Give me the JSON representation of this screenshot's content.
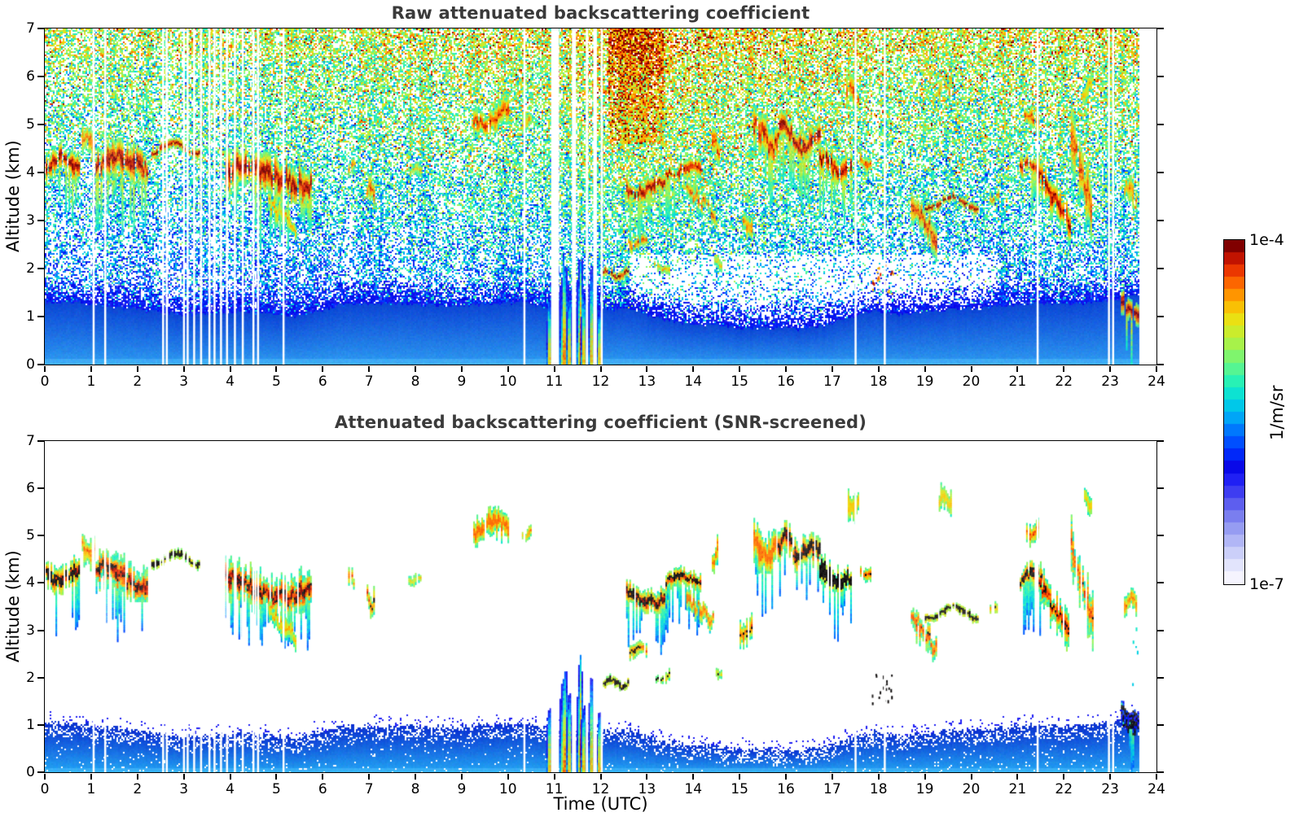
{
  "figure": {
    "background": "#ffffff",
    "title_color": "#3a3a3a"
  },
  "chart_data": {
    "type": "heatmap",
    "description": "Two lidar time-height curtain plots of attenuated backscattering coefficient over 24 hours",
    "xlabel": "Time (UTC)",
    "x_range": [
      0,
      24
    ],
    "y_range": [
      0,
      7
    ],
    "x_ticks": [
      0,
      1,
      2,
      3,
      4,
      5,
      6,
      7,
      8,
      9,
      10,
      11,
      12,
      13,
      14,
      15,
      16,
      17,
      18,
      19,
      20,
      21,
      22,
      23,
      24
    ],
    "y_ticks": [
      0,
      1,
      2,
      3,
      4,
      5,
      6,
      7
    ],
    "data_end_time": 23.63,
    "value_unit": "1/m/sr",
    "panels": [
      {
        "title": "Raw attenuated backscattering coefficient",
        "ylabel": "Altitude (km)",
        "screened": false
      },
      {
        "title": "Attenuated backscattering coefficient (SNR-screened)",
        "ylabel": "Altitude (km)",
        "screened": true
      }
    ],
    "colorbar": {
      "top_label": "1e-4",
      "bottom_label": "1e-7",
      "unit_label": "1/m/sr",
      "min": 1e-07,
      "max": 0.0001,
      "scale": "log",
      "steps": 28,
      "stops": [
        [
          0.0,
          "#f5f4fe"
        ],
        [
          0.05,
          "#dcdefb"
        ],
        [
          0.1,
          "#b9bef7"
        ],
        [
          0.15,
          "#959bf2"
        ],
        [
          0.2,
          "#6f72ee"
        ],
        [
          0.25,
          "#4644f0"
        ],
        [
          0.3,
          "#1d1df4"
        ],
        [
          0.34,
          "#0505e6"
        ],
        [
          0.38,
          "#0033ff"
        ],
        [
          0.43,
          "#0066ff"
        ],
        [
          0.48,
          "#00a4f8"
        ],
        [
          0.53,
          "#00d3e4"
        ],
        [
          0.58,
          "#19f0c0"
        ],
        [
          0.63,
          "#55f593"
        ],
        [
          0.68,
          "#8ef55f"
        ],
        [
          0.73,
          "#c2ef33"
        ],
        [
          0.78,
          "#ecdf12"
        ],
        [
          0.83,
          "#ffb300"
        ],
        [
          0.87,
          "#ff7d00"
        ],
        [
          0.91,
          "#f84c00"
        ],
        [
          0.94,
          "#e02500"
        ],
        [
          0.97,
          "#b80d00"
        ],
        [
          1.0,
          "#800000"
        ]
      ]
    },
    "boundary_layer_top_km": [
      [
        0,
        1.06
      ],
      [
        0.7,
        1.05
      ],
      [
        1.2,
        0.97
      ],
      [
        1.8,
        0.92
      ],
      [
        2.4,
        0.84
      ],
      [
        3.0,
        0.78
      ],
      [
        3.6,
        0.8
      ],
      [
        4.2,
        0.84
      ],
      [
        4.8,
        0.8
      ],
      [
        5.4,
        0.74
      ],
      [
        5.9,
        0.88
      ],
      [
        6.4,
        0.99
      ],
      [
        7.2,
        1.02
      ],
      [
        8.0,
        1.0
      ],
      [
        8.8,
        0.97
      ],
      [
        9.6,
        1.02
      ],
      [
        10.3,
        1.04
      ],
      [
        10.9,
        0.92
      ],
      [
        11.5,
        0.85
      ],
      [
        12.1,
        0.88
      ],
      [
        12.6,
        0.92
      ],
      [
        13.2,
        0.72
      ],
      [
        13.8,
        0.6
      ],
      [
        14.4,
        0.58
      ],
      [
        15.0,
        0.5
      ],
      [
        15.6,
        0.52
      ],
      [
        16.2,
        0.48
      ],
      [
        16.8,
        0.56
      ],
      [
        17.4,
        0.75
      ],
      [
        17.9,
        0.88
      ],
      [
        18.4,
        0.78
      ],
      [
        19.0,
        0.84
      ],
      [
        19.6,
        0.9
      ],
      [
        20.2,
        0.92
      ],
      [
        20.8,
        0.97
      ],
      [
        21.4,
        1.02
      ],
      [
        22.0,
        1.0
      ],
      [
        22.6,
        1.04
      ],
      [
        23.1,
        1.1
      ],
      [
        23.4,
        1.22
      ],
      [
        23.62,
        1.15
      ]
    ],
    "noise": {
      "level_by_alt": [
        [
          0,
          0.3
        ],
        [
          1,
          0.34
        ],
        [
          1.6,
          0.38
        ],
        [
          2.4,
          0.43
        ],
        [
          3.2,
          0.49
        ],
        [
          4,
          0.53
        ],
        [
          5,
          0.58
        ],
        [
          6,
          0.62
        ],
        [
          7,
          0.65
        ]
      ],
      "density_by_alt": [
        [
          0,
          0.95
        ],
        [
          0.9,
          0.92
        ],
        [
          1.3,
          0.72
        ],
        [
          1.8,
          0.56
        ],
        [
          2.6,
          0.56
        ],
        [
          3.4,
          0.62
        ],
        [
          4.5,
          0.64
        ],
        [
          5.5,
          0.66
        ],
        [
          6.5,
          0.7
        ],
        [
          7,
          0.72
        ]
      ],
      "warm_by_time": [
        [
          0,
          0.22
        ],
        [
          3,
          0.18
        ],
        [
          6,
          0.28
        ],
        [
          8,
          0.45
        ],
        [
          9.5,
          0.6
        ],
        [
          10.5,
          0.5
        ],
        [
          11.5,
          0.75
        ],
        [
          12.5,
          1.0
        ],
        [
          13.5,
          0.95
        ],
        [
          14.5,
          0.75
        ],
        [
          16,
          0.7
        ],
        [
          17,
          0.62
        ],
        [
          18,
          0.5
        ],
        [
          19,
          0.45
        ],
        [
          20,
          0.4
        ],
        [
          21,
          0.5
        ],
        [
          22,
          0.55
        ],
        [
          23.6,
          0.5
        ]
      ],
      "sigma": 0.11,
      "base_gradient": [
        "#2f9ff2",
        "#0c46d6"
      ],
      "band_gradient": [
        "#23a7f4",
        "#0a2fd0"
      ]
    },
    "features": [
      {
        "t": [
          0.02,
          0.75
        ],
        "a": [
          3.85,
          4.6
        ],
        "kind": "cloud",
        "strength": 1.0,
        "screen": "black-mix"
      },
      {
        "t": [
          0.8,
          1.05
        ],
        "a": [
          4.35,
          5.05
        ],
        "kind": "wisp",
        "strength": 0.75,
        "screen": "color"
      },
      {
        "t": [
          1.1,
          2.25
        ],
        "a": [
          3.7,
          4.65
        ],
        "kind": "cloud",
        "strength": 1.0,
        "screen": "green-mix"
      },
      {
        "t": [
          2.3,
          3.35
        ],
        "a": [
          4.3,
          4.72
        ],
        "kind": "streak",
        "strength": 1.0,
        "screen": "black"
      },
      {
        "t": [
          3.9,
          5.75
        ],
        "a": [
          3.45,
          4.5
        ],
        "kind": "cloud",
        "strength": 1.0,
        "screen": "green-mix"
      },
      {
        "t": [
          4.8,
          5.4
        ],
        "a": [
          2.75,
          3.5
        ],
        "kind": "virga",
        "strength": 0.6,
        "screen": "color"
      },
      {
        "t": [
          6.55,
          6.68
        ],
        "a": [
          3.9,
          4.35
        ],
        "kind": "wisp",
        "strength": 0.7,
        "screen": "color"
      },
      {
        "t": [
          6.95,
          7.1
        ],
        "a": [
          3.35,
          3.95
        ],
        "kind": "wisp",
        "strength": 0.8,
        "screen": "black-mix"
      },
      {
        "t": [
          7.85,
          8.1
        ],
        "a": [
          3.95,
          4.2
        ],
        "kind": "wisp",
        "strength": 0.5,
        "screen": "color"
      },
      {
        "t": [
          9.25,
          10.0
        ],
        "a": [
          4.85,
          5.55
        ],
        "kind": "patch",
        "strength": 0.85,
        "screen": "orange"
      },
      {
        "t": [
          10.3,
          10.5
        ],
        "a": [
          4.9,
          5.2
        ],
        "kind": "wisp",
        "strength": 0.7,
        "screen": "orange"
      },
      {
        "t": [
          12.05,
          12.6
        ],
        "a": [
          1.75,
          2.02
        ],
        "kind": "streak",
        "strength": 1.0,
        "screen": "black"
      },
      {
        "t": [
          12.62,
          13.0
        ],
        "a": [
          2.4,
          2.75
        ],
        "kind": "wisp",
        "strength": 0.8,
        "screen": "black-mix"
      },
      {
        "t": [
          12.55,
          13.45
        ],
        "a": [
          3.45,
          4.0
        ],
        "kind": "cloud",
        "strength": 1.0,
        "screen": "black-mix"
      },
      {
        "t": [
          13.15,
          13.5
        ],
        "a": [
          1.9,
          2.15
        ],
        "kind": "wisp",
        "strength": 0.6,
        "screen": "black"
      },
      {
        "t": [
          13.4,
          14.15
        ],
        "a": [
          3.85,
          4.3
        ],
        "kind": "cloud",
        "strength": 0.95,
        "screen": "black-mix"
      },
      {
        "t": [
          13.85,
          14.45
        ],
        "a": [
          3.1,
          3.75
        ],
        "kind": "virga",
        "strength": 0.8,
        "screen": "orange"
      },
      {
        "t": [
          14.4,
          14.6
        ],
        "a": [
          4.25,
          4.95
        ],
        "kind": "wisp",
        "strength": 0.8,
        "screen": "orange"
      },
      {
        "t": [
          14.45,
          14.6
        ],
        "a": [
          2.0,
          2.25
        ],
        "kind": "wisp",
        "strength": 0.5,
        "screen": "black"
      },
      {
        "t": [
          15.0,
          15.25
        ],
        "a": [
          2.7,
          3.3
        ],
        "kind": "wisp",
        "strength": 0.75,
        "screen": "black-mix"
      },
      {
        "t": [
          15.3,
          15.8
        ],
        "a": [
          4.3,
          5.3
        ],
        "kind": "cloud",
        "strength": 0.9,
        "screen": "orange"
      },
      {
        "t": [
          15.82,
          16.12
        ],
        "a": [
          4.55,
          5.25
        ],
        "kind": "cloud",
        "strength": 1.0,
        "screen": "black-mix"
      },
      {
        "t": [
          16.15,
          16.72
        ],
        "a": [
          4.3,
          5.05
        ],
        "kind": "cloud",
        "strength": 1.0,
        "screen": "black-mix"
      },
      {
        "t": [
          16.72,
          17.4
        ],
        "a": [
          3.85,
          4.55
        ],
        "kind": "cloud",
        "strength": 1.0,
        "screen": "black"
      },
      {
        "t": [
          17.3,
          17.58
        ],
        "a": [
          5.35,
          6.05
        ],
        "kind": "patch",
        "strength": 0.8,
        "screen": "yellow"
      },
      {
        "t": [
          17.6,
          17.82
        ],
        "a": [
          4.05,
          4.4
        ],
        "kind": "wisp",
        "strength": 0.8,
        "screen": "black-mix"
      },
      {
        "t": [
          17.85,
          18.3
        ],
        "a": [
          1.4,
          2.1
        ],
        "kind": "specks",
        "strength": 0.5,
        "screen": "black"
      },
      {
        "t": [
          18.7,
          19.25
        ],
        "a": [
          2.45,
          3.5
        ],
        "kind": "virga",
        "strength": 0.85,
        "screen": "green-mix"
      },
      {
        "t": [
          19.0,
          20.15
        ],
        "a": [
          3.15,
          3.6
        ],
        "kind": "streak",
        "strength": 1.0,
        "screen": "black"
      },
      {
        "t": [
          19.3,
          19.55
        ],
        "a": [
          5.5,
          6.05
        ],
        "kind": "wisp",
        "strength": 0.7,
        "screen": "yellow"
      },
      {
        "t": [
          20.4,
          20.6
        ],
        "a": [
          3.35,
          3.6
        ],
        "kind": "wisp",
        "strength": 0.7,
        "screen": "black-mix"
      },
      {
        "t": [
          21.05,
          21.52
        ],
        "a": [
          3.85,
          4.4
        ],
        "kind": "cloud",
        "strength": 1.0,
        "screen": "black-mix"
      },
      {
        "t": [
          21.15,
          21.45
        ],
        "a": [
          4.85,
          5.4
        ],
        "kind": "wisp",
        "strength": 0.8,
        "screen": "color"
      },
      {
        "t": [
          21.45,
          22.12
        ],
        "a": [
          2.8,
          4.15
        ],
        "kind": "virga",
        "strength": 0.95,
        "screen": "green-mix"
      },
      {
        "t": [
          22.15,
          22.62
        ],
        "a": [
          2.9,
          5.05
        ],
        "kind": "virga",
        "strength": 0.8,
        "screen": "green-mix"
      },
      {
        "t": [
          22.4,
          22.6
        ],
        "a": [
          5.5,
          6.0
        ],
        "kind": "wisp",
        "strength": 0.6,
        "screen": "yellow"
      },
      {
        "t": [
          23.2,
          23.62
        ],
        "a": [
          0.88,
          1.5
        ],
        "kind": "cloud",
        "strength": 1.0,
        "screen": "dark"
      },
      {
        "t": [
          23.3,
          23.58
        ],
        "a": [
          3.3,
          3.95
        ],
        "kind": "wisp",
        "strength": 0.7,
        "screen": "color"
      },
      {
        "t": [
          23.45,
          23.62
        ],
        "a": [
          1.6,
          3.3
        ],
        "kind": "specks",
        "strength": 0.4,
        "screen": "cyan"
      }
    ],
    "rain_plumes": [
      {
        "t": 10.88,
        "width": 0.08,
        "top_km": 1.4
      },
      {
        "t": 11.2,
        "width": 0.18,
        "top_km": 2.2
      },
      {
        "t": 11.31,
        "width": 0.1,
        "top_km": 1.6
      },
      {
        "t": 11.55,
        "width": 0.14,
        "top_km": 2.3
      },
      {
        "t": 11.62,
        "width": 0.08,
        "top_km": 1.5
      },
      {
        "t": 11.79,
        "width": 0.1,
        "top_km": 2.2
      },
      {
        "t": 11.96,
        "width": 0.07,
        "top_km": 1.2
      }
    ],
    "gap_times": [
      1.05,
      1.3,
      2.55,
      2.63,
      3.0,
      3.08,
      3.22,
      3.37,
      3.55,
      3.66,
      3.8,
      3.93,
      4.1,
      4.27,
      4.5,
      4.6,
      5.15,
      10.35,
      12.02,
      17.5,
      18.13,
      21.43,
      22.97,
      23.06
    ],
    "gap_spans": [
      [
        10.93,
        11.1
      ],
      [
        11.38,
        11.47
      ],
      [
        11.68,
        11.73
      ],
      [
        11.84,
        11.92
      ]
    ]
  }
}
